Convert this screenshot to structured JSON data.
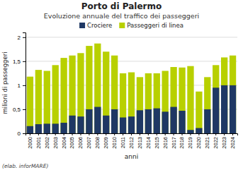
{
  "chart_data": {
    "type": "bar",
    "title": "Porto di Palermo",
    "subtitle": "Evoluzione annuale del traffico dei passeggeri",
    "x_label": "anni",
    "y_label": "milioni di passeggeri",
    "annotations": [
      "(elab. inforMARE)"
    ],
    "categories": [
      "2000",
      "2001",
      "2002",
      "2003",
      "2004",
      "2005",
      "2006",
      "2007",
      "2008",
      "2009",
      "2010",
      "2011",
      "2012",
      "2013",
      "2014",
      "2015",
      "2016",
      "2017",
      "2018",
      "2019",
      "2020",
      "2021",
      "2022",
      "2023",
      "2024"
    ],
    "series": [
      {
        "name": "Crociere",
        "color": "#1f3864",
        "values": [
          0.15,
          0.19,
          0.2,
          0.2,
          0.22,
          0.37,
          0.35,
          0.5,
          0.55,
          0.37,
          0.5,
          0.33,
          0.35,
          0.48,
          0.5,
          0.52,
          0.45,
          0.55,
          0.47,
          0.07,
          0.11,
          0.5,
          0.95,
          1.0,
          1.0
        ]
      },
      {
        "name": "Passeggeri di linea",
        "color": "#b8d000",
        "values": [
          1.18,
          1.32,
          1.3,
          1.42,
          1.57,
          1.62,
          1.67,
          1.82,
          1.87,
          1.7,
          1.62,
          1.25,
          1.27,
          1.17,
          1.25,
          1.25,
          1.3,
          1.38,
          1.37,
          1.4,
          0.87,
          1.17,
          1.42,
          1.58,
          1.62
        ]
      }
    ],
    "stacked": false,
    "ylim": [
      0,
      2.1
    ],
    "yticks": [
      0,
      {
        "value": 0.5,
        "label": "0,5"
      },
      1,
      {
        "value": 1.5,
        "label": "1,5"
      },
      2
    ],
    "grid": true,
    "legend": "top"
  }
}
